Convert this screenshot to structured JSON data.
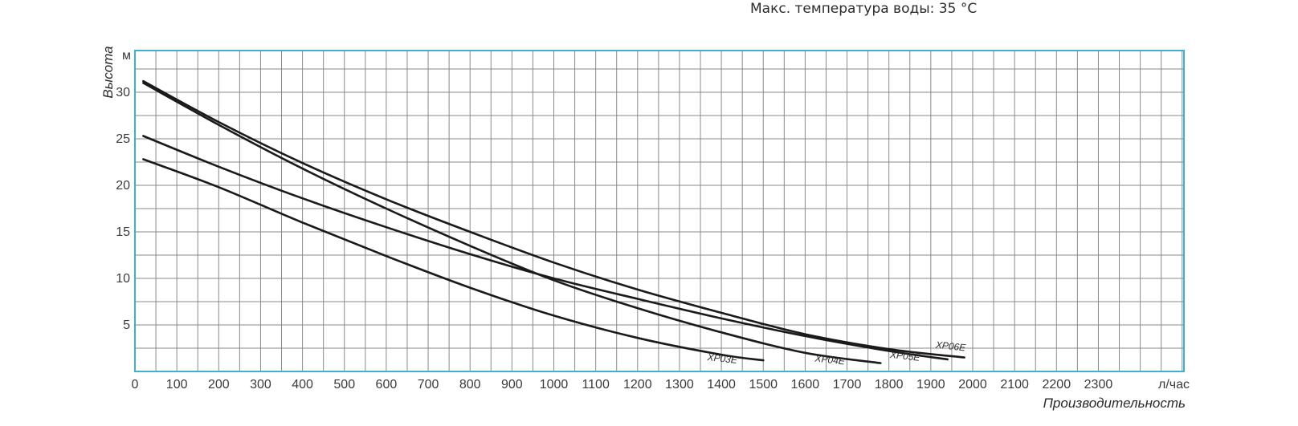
{
  "note": "Макс. температура воды: 35 °C",
  "chart_data": {
    "type": "line",
    "title": "",
    "xlabel": "Производительность",
    "ylabel": "Высота",
    "x_unit": "л/час",
    "y_unit": "м",
    "xlim": [
      0,
      2500
    ],
    "ylim": [
      0,
      34
    ],
    "x_ticks": [
      0,
      100,
      200,
      300,
      400,
      500,
      600,
      700,
      800,
      900,
      1000,
      1100,
      1200,
      1300,
      1400,
      1500,
      1600,
      1700,
      1800,
      1900,
      2000,
      2100,
      2200,
      2300
    ],
    "y_ticks": [
      5,
      10,
      15,
      20,
      25,
      30
    ],
    "grid": true,
    "colors": {
      "grid": "#8a8a8a",
      "frame": "#3fb0d0",
      "line": "#1a1a1a",
      "text": "#3a3a3a"
    },
    "series": [
      {
        "name": "XP03E",
        "points": [
          [
            20,
            22.8
          ],
          [
            200,
            19.8
          ],
          [
            400,
            16.0
          ],
          [
            600,
            12.4
          ],
          [
            800,
            9.0
          ],
          [
            1000,
            6.0
          ],
          [
            1200,
            3.6
          ],
          [
            1400,
            1.8
          ],
          [
            1500,
            1.2
          ]
        ]
      },
      {
        "name": "XP04E",
        "points": [
          [
            20,
            31.0
          ],
          [
            200,
            26.5
          ],
          [
            400,
            21.8
          ],
          [
            600,
            17.5
          ],
          [
            800,
            13.5
          ],
          [
            1000,
            9.8
          ],
          [
            1200,
            6.8
          ],
          [
            1400,
            4.2
          ],
          [
            1600,
            2.0
          ],
          [
            1780,
            0.9
          ]
        ]
      },
      {
        "name": "XP05E",
        "points": [
          [
            20,
            25.3
          ],
          [
            200,
            22.0
          ],
          [
            400,
            18.6
          ],
          [
            600,
            15.5
          ],
          [
            800,
            12.6
          ],
          [
            1000,
            10.0
          ],
          [
            1200,
            7.8
          ],
          [
            1400,
            5.7
          ],
          [
            1600,
            3.8
          ],
          [
            1800,
            2.2
          ],
          [
            1940,
            1.3
          ]
        ]
      },
      {
        "name": "XP06E",
        "points": [
          [
            20,
            31.2
          ],
          [
            200,
            26.8
          ],
          [
            400,
            22.4
          ],
          [
            600,
            18.5
          ],
          [
            800,
            15.0
          ],
          [
            1000,
            11.7
          ],
          [
            1200,
            8.8
          ],
          [
            1400,
            6.3
          ],
          [
            1600,
            4.0
          ],
          [
            1800,
            2.4
          ],
          [
            1980,
            1.5
          ]
        ]
      }
    ]
  }
}
